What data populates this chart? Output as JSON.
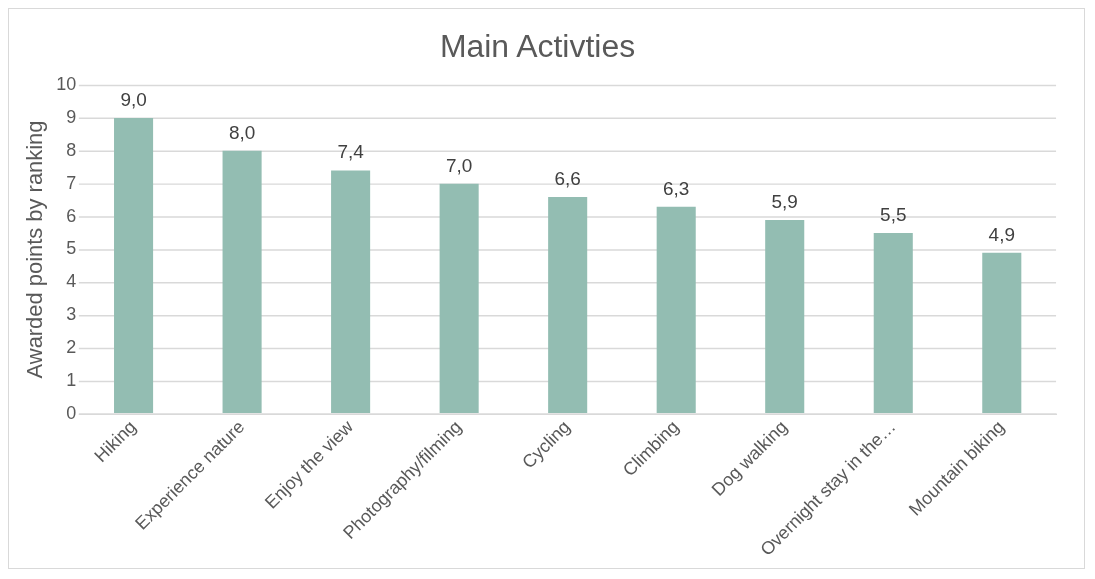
{
  "chart_data": {
    "type": "bar",
    "title": "Main Activties",
    "ylabel": "Awarded points by ranking",
    "categories": [
      "Hiking",
      "Experience nature",
      "Enjoy the view",
      "Photography/filming",
      "Cycling",
      "Climbing",
      "Dog walking",
      "Overnight stay in the…",
      "Mountain biking"
    ],
    "values": [
      9.0,
      8.0,
      7.4,
      7.0,
      6.6,
      6.3,
      5.9,
      5.5,
      4.9
    ],
    "value_labels": [
      "9,0",
      "8,0",
      "7,4",
      "7,0",
      "6,6",
      "6,3",
      "5,9",
      "5,5",
      "4,9"
    ],
    "color": "#93bdb2",
    "ylim": [
      0,
      10
    ],
    "yticks": [
      0,
      1,
      2,
      3,
      4,
      5,
      6,
      7,
      8,
      9,
      10
    ],
    "grid": "y",
    "legend": false
  }
}
